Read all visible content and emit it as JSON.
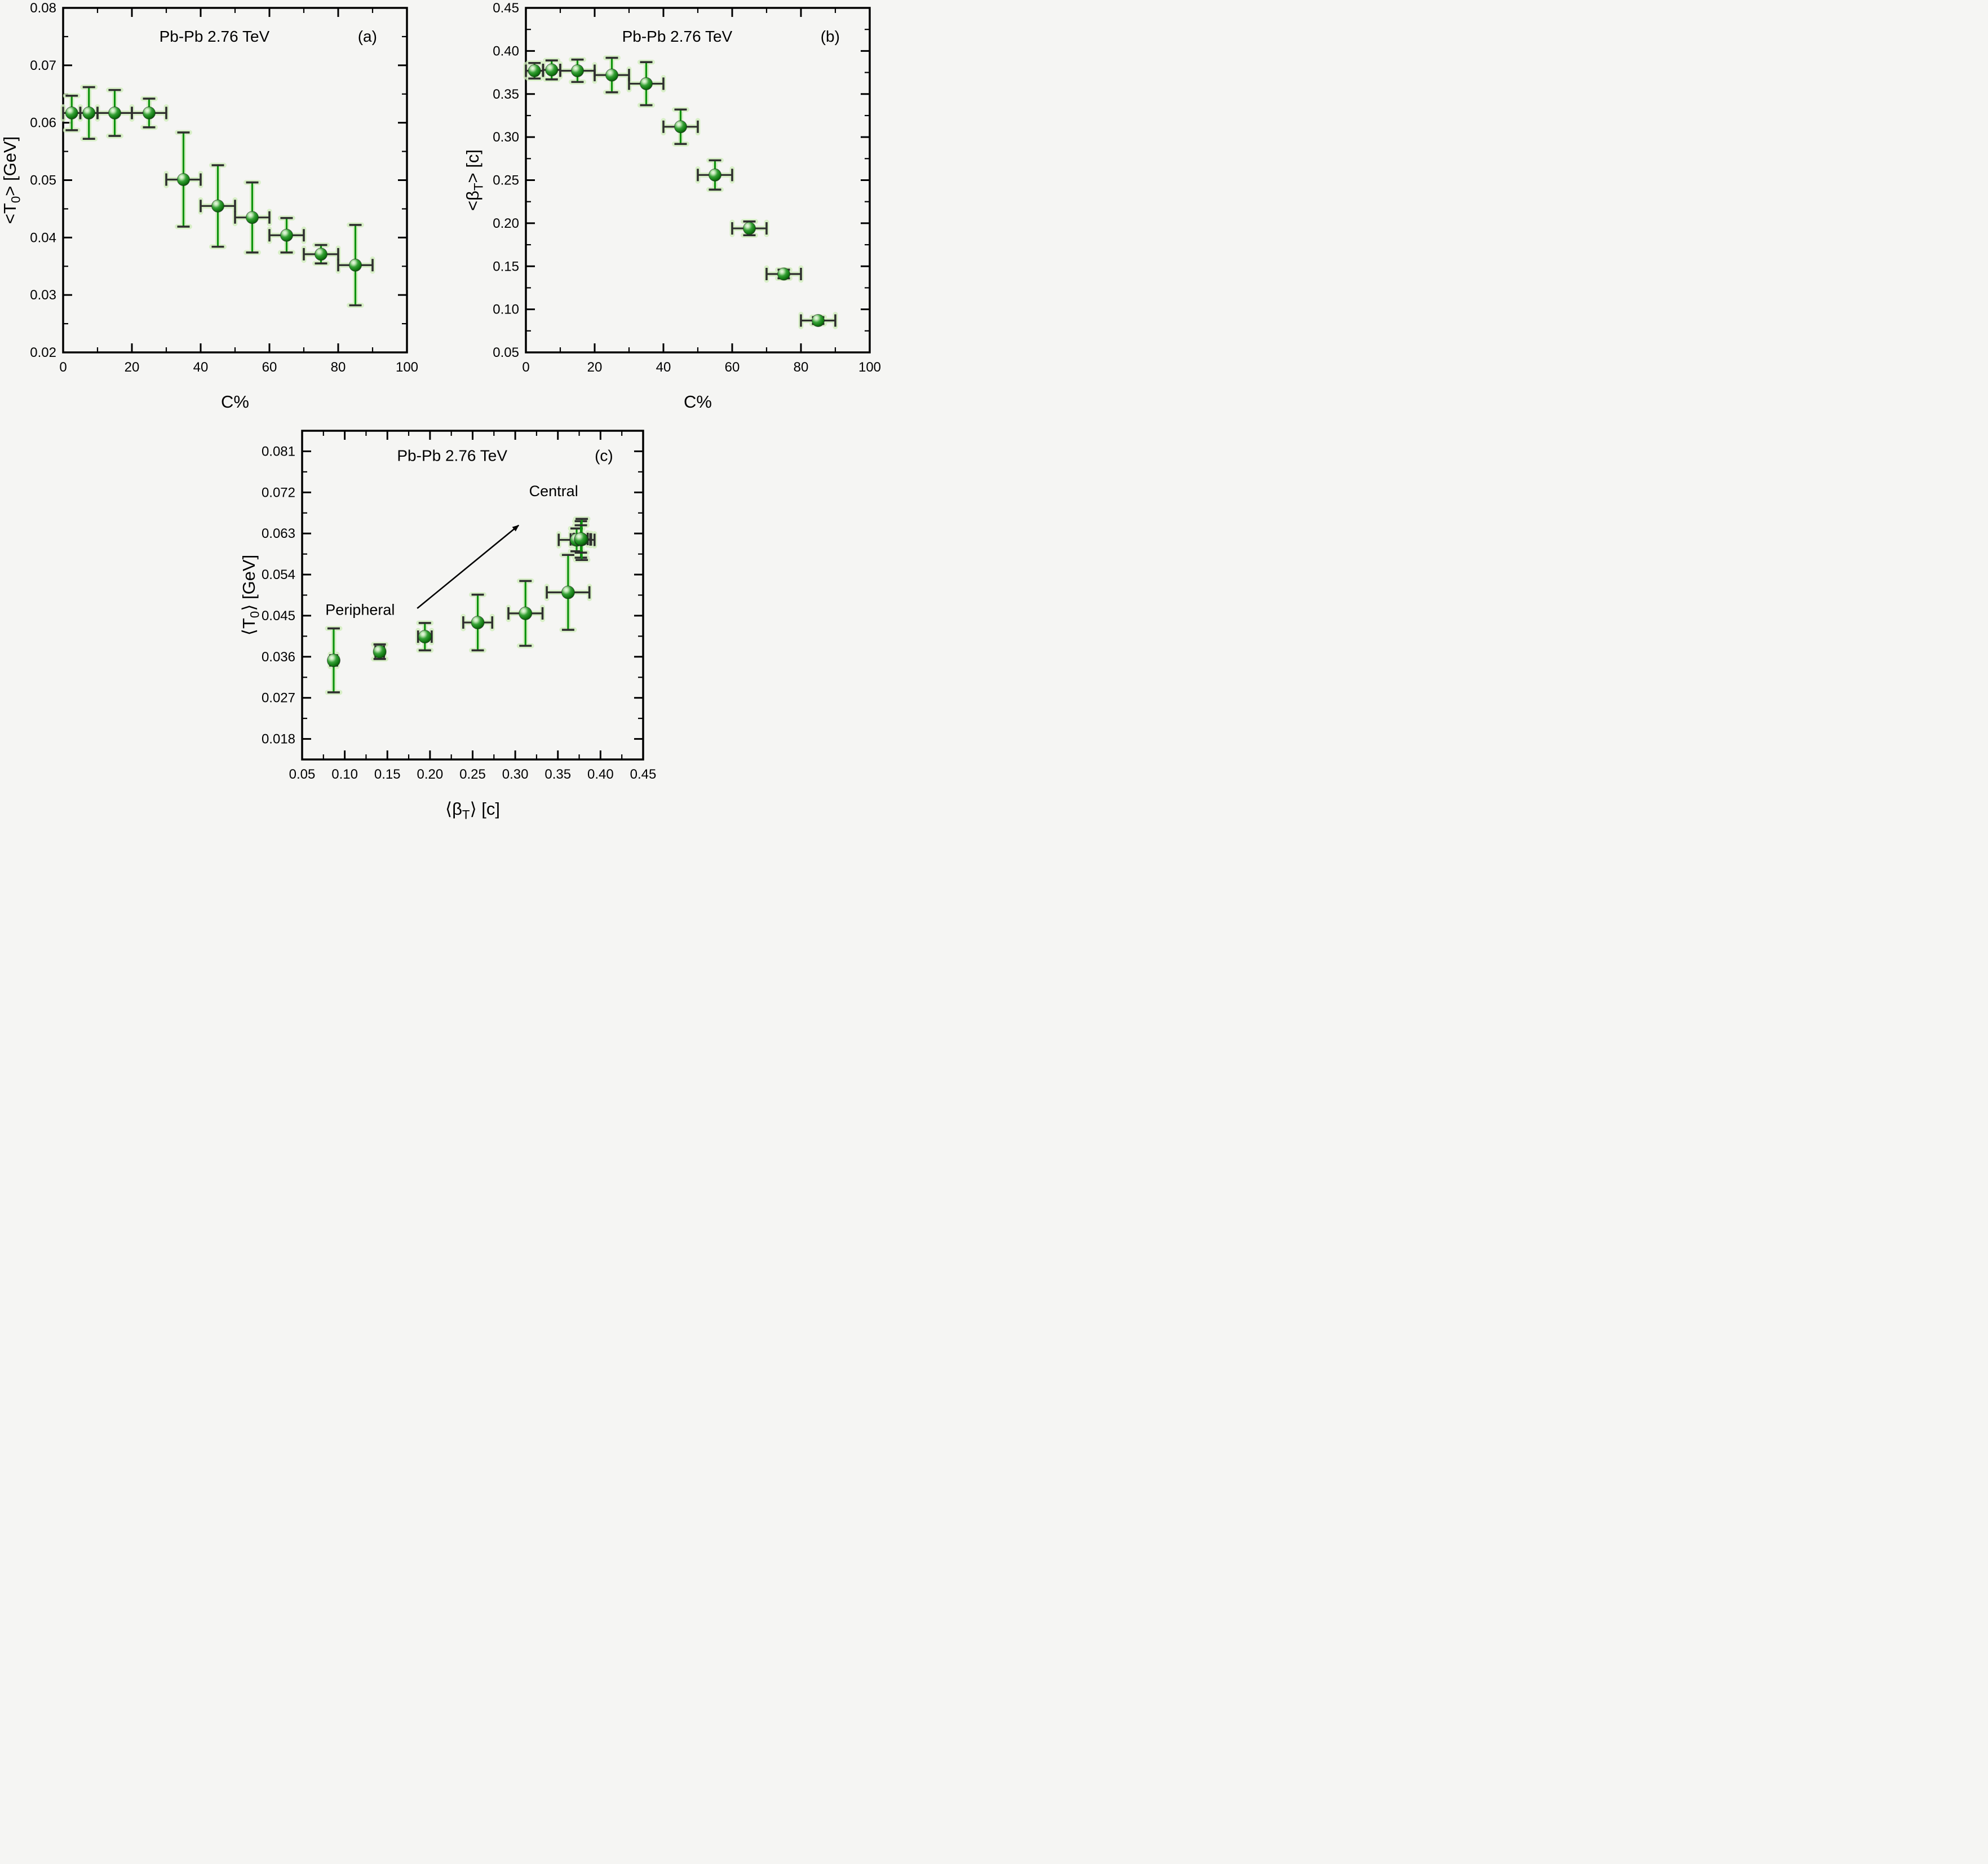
{
  "figure": {
    "experiment_title": "Pb-Pb  2.76 TeV",
    "colors": {
      "background": "#f5f5f3",
      "axis": "#000000",
      "text": "#000000",
      "error_green": "#0c930c",
      "error_dark": "#2f2f2f",
      "glow": "#d2eebd",
      "ball_light": "#eef9ea",
      "ball_mid": "#36a136",
      "ball_dark": "#0a4f0a",
      "arrow": "#000000"
    }
  },
  "chart_data": [
    {
      "id": "a",
      "type": "scatter",
      "title": "Pb-Pb  2.76 TeV",
      "panel_label": "(a)",
      "xlabel_parts": [
        "C%"
      ],
      "ylabel_parts": [
        "<T",
        "0",
        "> [GeV]"
      ],
      "xlim": [
        0,
        100
      ],
      "ylim": [
        0.02,
        0.08
      ],
      "xticks_major": [
        0,
        20,
        40,
        60,
        80,
        100
      ],
      "xtick_labels": [
        "0",
        "20",
        "40",
        "60",
        "80",
        "100"
      ],
      "xticks_minor": [
        10,
        30,
        50,
        70,
        90
      ],
      "yticks_major": [
        0.02,
        0.03,
        0.04,
        0.05,
        0.06,
        0.07,
        0.08
      ],
      "ytick_labels": [
        "0.02",
        "0.03",
        "0.04",
        "0.05",
        "0.06",
        "0.07",
        "0.08"
      ],
      "yticks_minor": [
        0.025,
        0.035,
        0.045,
        0.055,
        0.065,
        0.075
      ],
      "x": [
        2.5,
        7.5,
        15,
        25,
        35,
        45,
        55,
        65,
        75,
        85
      ],
      "xerr": [
        2.5,
        2.5,
        5,
        5,
        5,
        5,
        5,
        5,
        5,
        5
      ],
      "y": [
        0.0617,
        0.0617,
        0.0617,
        0.0617,
        0.0501,
        0.0455,
        0.0435,
        0.0404,
        0.0371,
        0.0352
      ],
      "yerr": [
        0.003,
        0.0045,
        0.004,
        0.0025,
        0.0082,
        0.0071,
        0.0061,
        0.003,
        0.0016,
        0.007
      ],
      "marker_r": 11,
      "title_fx": 0.44,
      "letter_fx": 0.885,
      "title_fy": 0.082
    },
    {
      "id": "b",
      "type": "scatter",
      "title": "Pb-Pb  2.76 TeV",
      "panel_label": "(b)",
      "xlabel_parts": [
        "C%"
      ],
      "ylabel_parts": [
        "<β",
        "T",
        "> [c]"
      ],
      "xlim": [
        0,
        100
      ],
      "ylim": [
        0.05,
        0.45
      ],
      "xticks_major": [
        0,
        20,
        40,
        60,
        80,
        100
      ],
      "xtick_labels": [
        "0",
        "20",
        "40",
        "60",
        "80",
        "100"
      ],
      "xticks_minor": [
        10,
        30,
        50,
        70,
        90
      ],
      "yticks_major": [
        0.05,
        0.1,
        0.15,
        0.2,
        0.25,
        0.3,
        0.35,
        0.4,
        0.45
      ],
      "ytick_labels": [
        "0.05",
        "0.10",
        "0.15",
        "0.20",
        "0.25",
        "0.30",
        "0.35",
        "0.40",
        "0.45"
      ],
      "yticks_minor": [
        0.075,
        0.125,
        0.175,
        0.225,
        0.275,
        0.325,
        0.375,
        0.425
      ],
      "x": [
        2.5,
        7.5,
        15,
        25,
        35,
        45,
        55,
        65,
        75,
        85
      ],
      "xerr": [
        2.5,
        2.5,
        5,
        5,
        5,
        5,
        5,
        5,
        5,
        5
      ],
      "y": [
        0.377,
        0.378,
        0.377,
        0.372,
        0.362,
        0.312,
        0.256,
        0.194,
        0.141,
        0.087
      ],
      "yerr": [
        0.009,
        0.011,
        0.013,
        0.02,
        0.025,
        0.02,
        0.017,
        0.008,
        0.005,
        0.004
      ],
      "marker_r": 11,
      "title_fx": 0.44,
      "letter_fx": 0.885,
      "title_fy": 0.082
    },
    {
      "id": "c",
      "type": "scatter",
      "title": "Pb-Pb  2.76 TeV",
      "panel_label": "(c)",
      "xlabel_parts": [
        "⟨β",
        "T",
        "⟩ [c]"
      ],
      "ylabel_parts": [
        "⟨T",
        "0",
        "⟩ [GeV]"
      ],
      "xlim": [
        0.05,
        0.45
      ],
      "ylim": [
        0.0135,
        0.0855
      ],
      "xticks_major": [
        0.05,
        0.1,
        0.15,
        0.2,
        0.25,
        0.3,
        0.35,
        0.4,
        0.45
      ],
      "xtick_labels": [
        "0.05",
        "0.10",
        "0.15",
        "0.20",
        "0.25",
        "0.30",
        "0.35",
        "0.40",
        "0.45"
      ],
      "xticks_minor": [
        0.075,
        0.125,
        0.175,
        0.225,
        0.275,
        0.325,
        0.375,
        0.425
      ],
      "yticks_major": [
        0.018,
        0.027,
        0.036,
        0.045,
        0.054,
        0.063,
        0.072,
        0.081
      ],
      "ytick_labels": [
        "0.018",
        "0.027",
        "0.036",
        "0.045",
        "0.054",
        "0.063",
        "0.072",
        "0.081"
      ],
      "yticks_minor": [
        0.0225,
        0.0315,
        0.0405,
        0.0495,
        0.0585,
        0.0675,
        0.0765
      ],
      "x": [
        0.087,
        0.141,
        0.194,
        0.256,
        0.312,
        0.362,
        0.372,
        0.377,
        0.378,
        0.377
      ],
      "xerr": [
        0.004,
        0.005,
        0.008,
        0.017,
        0.02,
        0.025,
        0.021,
        0.012,
        0.01,
        0.008
      ],
      "y": [
        0.0352,
        0.0371,
        0.0404,
        0.0435,
        0.0455,
        0.0501,
        0.0616,
        0.0617,
        0.0617,
        0.0618
      ],
      "yerr": [
        0.007,
        0.0016,
        0.003,
        0.0061,
        0.0071,
        0.0082,
        0.0025,
        0.004,
        0.0045,
        0.003
      ],
      "marker_r": 11.5,
      "title_fx": 0.44,
      "letter_fx": 0.885,
      "title_fy": 0.075,
      "annotations": [
        {
          "text": "Peripheral",
          "x": 0.118,
          "y": 0.0452
        },
        {
          "text": "Central",
          "x": 0.345,
          "y": 0.0712
        }
      ],
      "arrow": {
        "x1": 0.185,
        "y1": 0.0466,
        "x2": 0.304,
        "y2": 0.0648
      }
    }
  ]
}
